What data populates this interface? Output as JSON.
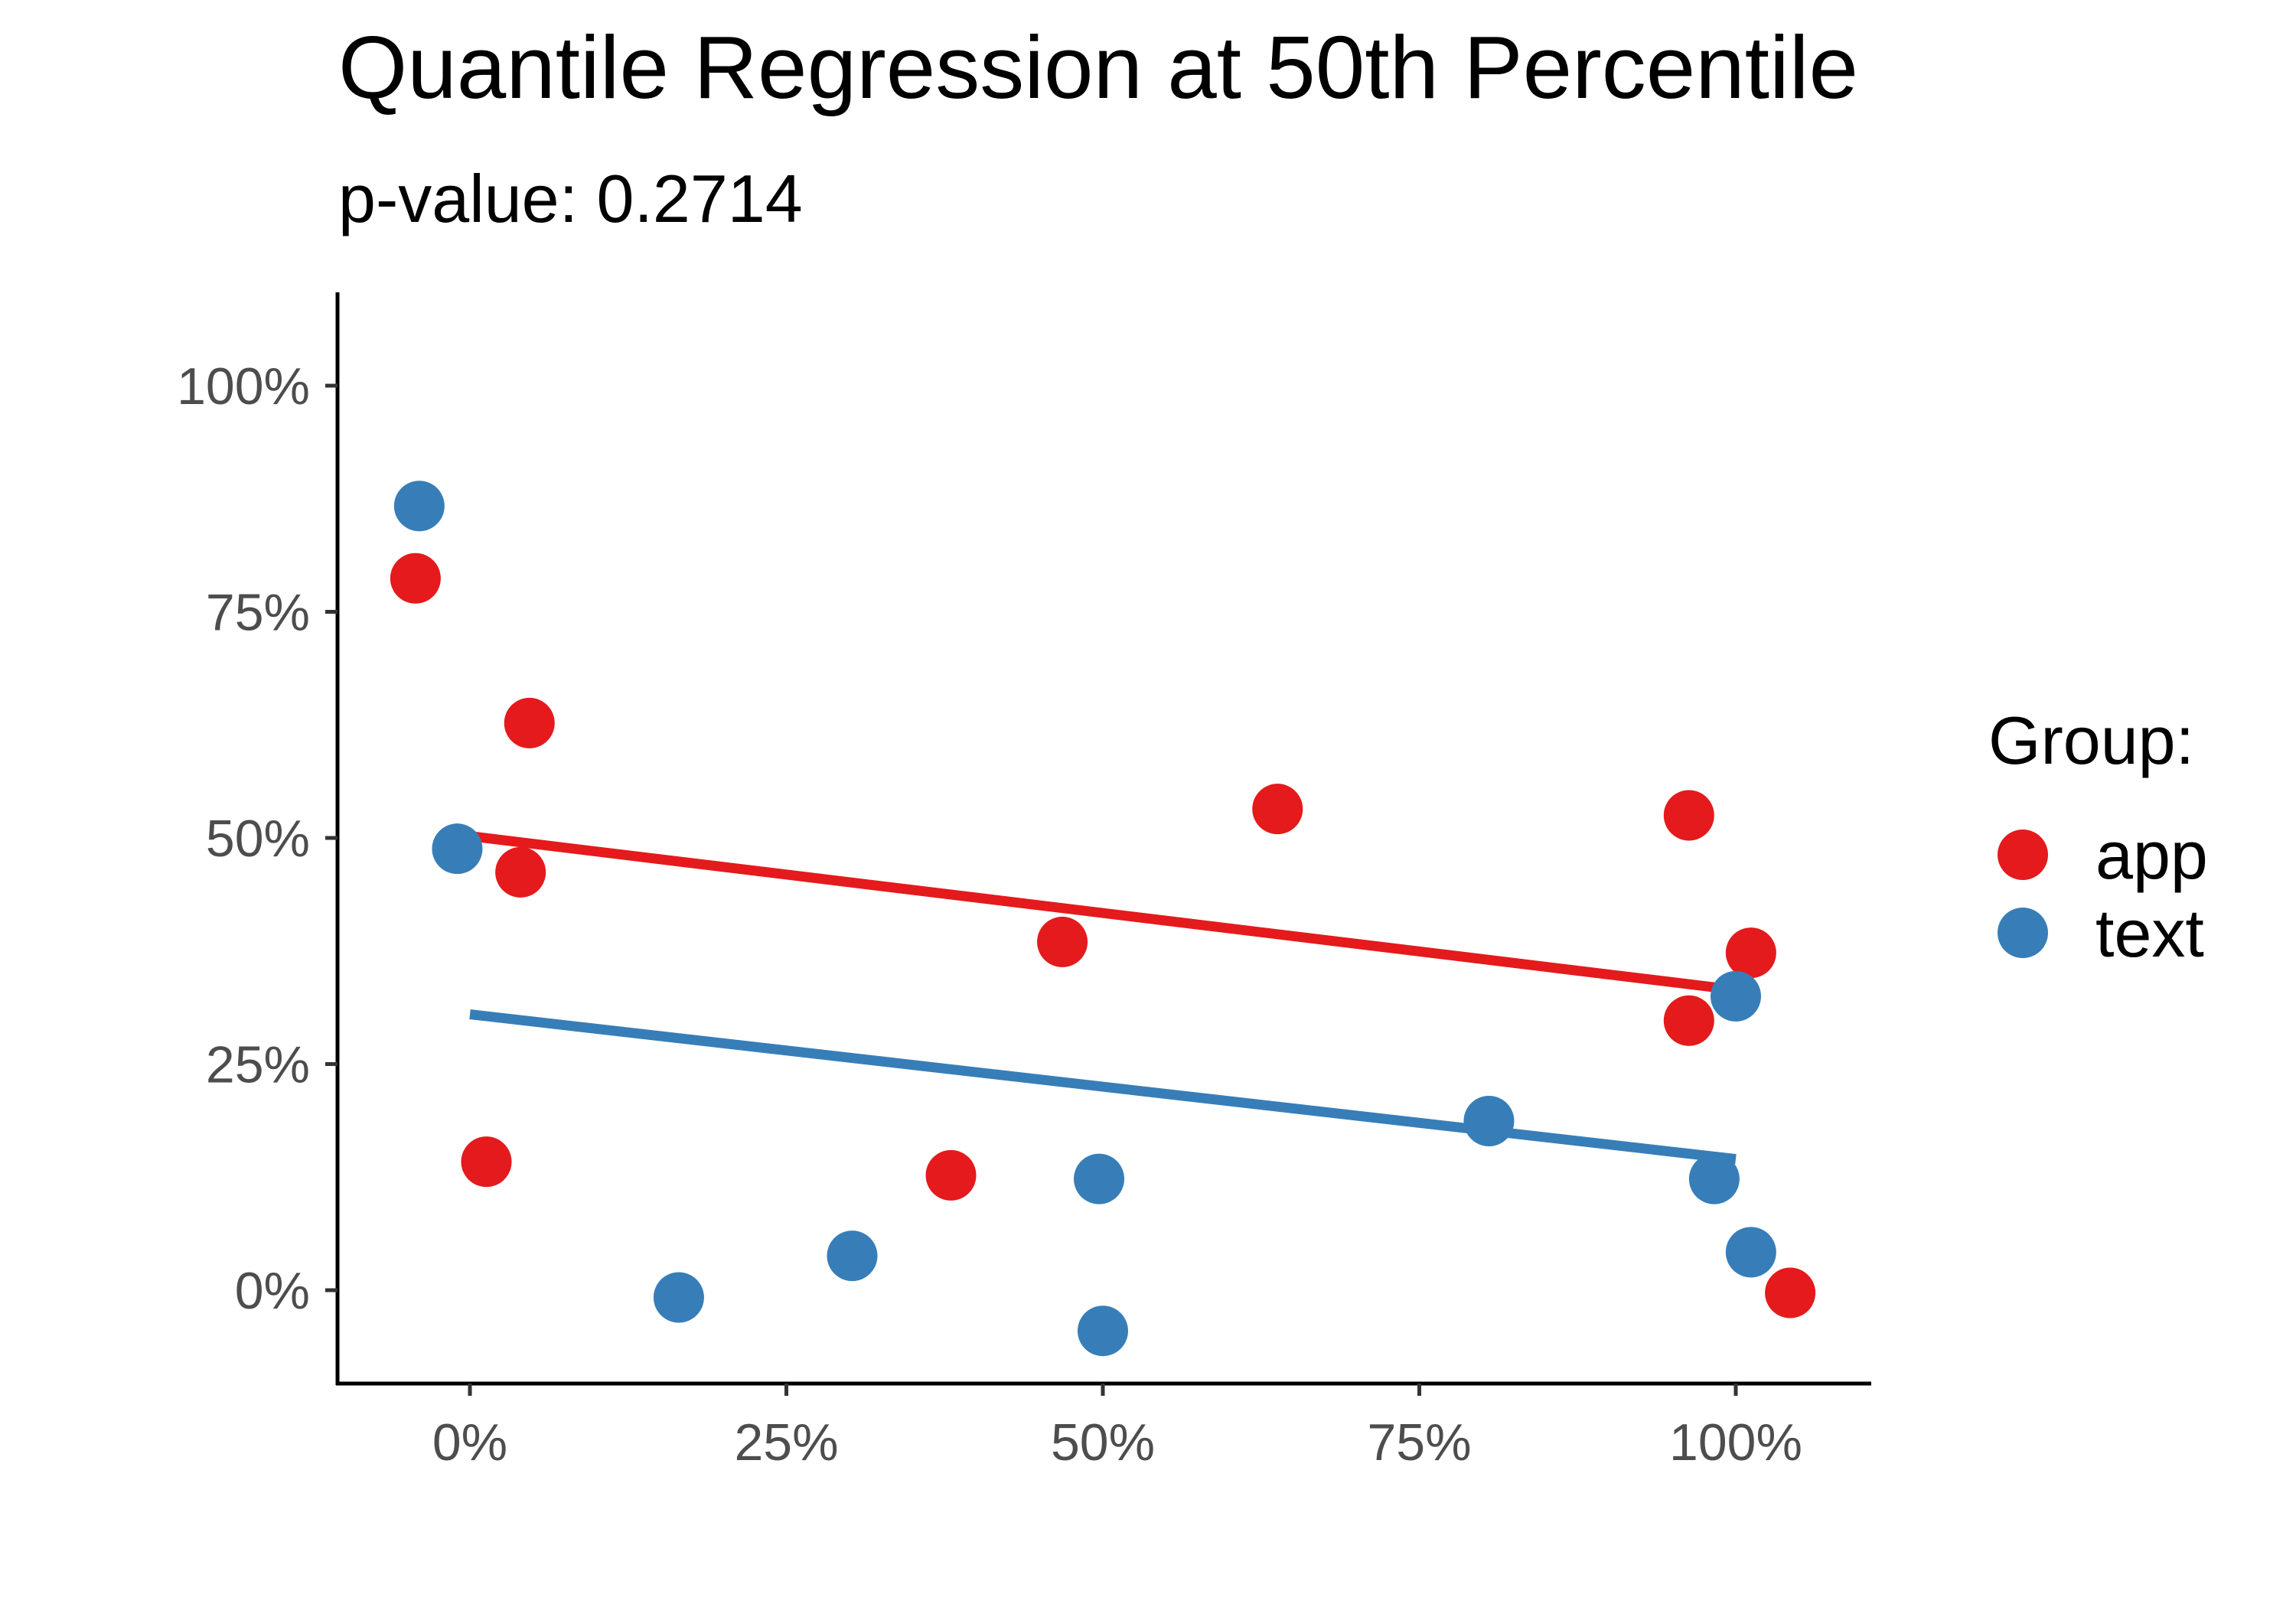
{
  "chart_data": {
    "type": "scatter",
    "title": "Quantile Regression at 50th Percentile",
    "subtitle": "p-value: 0.2714",
    "xlabel": "",
    "ylabel": "",
    "xlim": [
      -0.105,
      1.105
    ],
    "ylim": [
      -0.105,
      1.105
    ],
    "x_ticks": [
      0,
      0.25,
      0.5,
      0.75,
      1.0
    ],
    "x_tick_labels": [
      "0%",
      "25%",
      "50%",
      "75%",
      "100%"
    ],
    "y_ticks": [
      0,
      0.25,
      0.5,
      0.75,
      1.0
    ],
    "y_tick_labels": [
      "0%",
      "25%",
      "50%",
      "75%",
      "100%"
    ],
    "grid": false,
    "legend": {
      "title": "Group:",
      "position": "right",
      "entries": [
        "app",
        "text"
      ]
    },
    "series": [
      {
        "name": "app",
        "color": "#e41a1c",
        "points": [
          {
            "x": -0.043,
            "y": 0.787
          },
          {
            "x": 0.047,
            "y": 0.627
          },
          {
            "x": 0.04,
            "y": 0.462
          },
          {
            "x": 0.013,
            "y": 0.142
          },
          {
            "x": 0.38,
            "y": 0.127
          },
          {
            "x": 0.468,
            "y": 0.385
          },
          {
            "x": 0.638,
            "y": 0.532
          },
          {
            "x": 0.963,
            "y": 0.525
          },
          {
            "x": 1.012,
            "y": 0.373
          },
          {
            "x": 0.963,
            "y": 0.298
          },
          {
            "x": 1.043,
            "y": -0.003
          }
        ],
        "fit": {
          "x": [
            0,
            1
          ],
          "y": [
            0.502,
            0.332
          ]
        }
      },
      {
        "name": "text",
        "color": "#377eb8",
        "points": [
          {
            "x": -0.04,
            "y": 0.867
          },
          {
            "x": -0.01,
            "y": 0.488
          },
          {
            "x": 0.165,
            "y": -0.008
          },
          {
            "x": 0.302,
            "y": 0.038
          },
          {
            "x": 0.497,
            "y": 0.123
          },
          {
            "x": 0.5,
            "y": -0.045
          },
          {
            "x": 0.805,
            "y": 0.187
          },
          {
            "x": 0.983,
            "y": 0.123
          },
          {
            "x": 1.0,
            "y": 0.325
          },
          {
            "x": 1.012,
            "y": 0.042
          }
        ],
        "fit": {
          "x": [
            0,
            1
          ],
          "y": [
            0.305,
            0.145
          ]
        }
      }
    ]
  }
}
